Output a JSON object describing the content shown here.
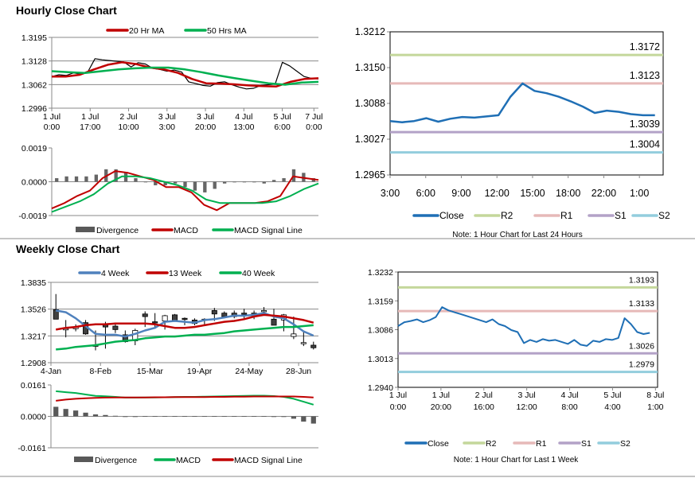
{
  "titles": {
    "hourly": "Hourly Close Chart",
    "weekly": "Weekly Close Chart"
  },
  "notes": {
    "hourly": "Note: 1 Hour Chart for Last 24 Hours",
    "weekly": "Note: 1 Hour Chart for  Last 1 Week"
  },
  "chart_data": [
    {
      "id": "hourly_price",
      "type": "line",
      "title": "Hourly Close Chart",
      "ylim": [
        1.2996,
        1.3195
      ],
      "yticks": [
        "1.3195",
        "1.3128",
        "1.3062",
        "1.2996"
      ],
      "grid": true,
      "xlim": [
        0,
        118
      ],
      "xticks": [
        {
          "x": 0,
          "l1": "1 Jul",
          "l2": "0:00"
        },
        {
          "x": 17,
          "l1": "1 Jul",
          "l2": "17:00"
        },
        {
          "x": 34,
          "l1": "2 Jul",
          "l2": "10:00"
        },
        {
          "x": 51,
          "l1": "3 Jul",
          "l2": "3:00"
        },
        {
          "x": 68,
          "l1": "3 Jul",
          "l2": "20:00"
        },
        {
          "x": 85,
          "l1": "4 Jul",
          "l2": "13:00"
        },
        {
          "x": 102,
          "l1": "5 Jul",
          "l2": "6:00"
        },
        {
          "x": 116,
          "l1": "7 Jul",
          "l2": "0:00"
        }
      ],
      "legend": [
        {
          "name": "20 Hr MA",
          "color": "#c00000"
        },
        {
          "name": "50 Hrs MA",
          "color": "#00b050"
        }
      ],
      "series": [
        {
          "name": "Close",
          "color": "#000000",
          "values": [
            1.3085,
            1.309,
            1.3088,
            1.3095,
            1.3092,
            1.3098,
            1.3135,
            1.3132,
            1.313,
            1.3128,
            1.3126,
            1.3112,
            1.3124,
            1.312,
            1.3108,
            1.3105,
            1.31,
            1.3103,
            1.3098,
            1.307,
            1.3065,
            1.306,
            1.3058,
            1.3068,
            1.307,
            1.3062,
            1.3055,
            1.305,
            1.3052,
            1.306,
            1.3062,
            1.3064,
            1.3125,
            1.3115,
            1.31,
            1.3085,
            1.308,
            1.3078
          ]
        },
        {
          "name": "20 Hr MA",
          "color": "#c00000",
          "values": [
            1.3085,
            1.3085,
            1.309,
            1.3105,
            1.3118,
            1.3125,
            1.312,
            1.311,
            1.3105,
            1.3095,
            1.3078,
            1.3066,
            1.3065,
            1.3063,
            1.306,
            1.3058,
            1.3057,
            1.307,
            1.3078,
            1.308
          ]
        },
        {
          "name": "50 Hrs MA",
          "color": "#00b050",
          "values": [
            1.31,
            1.3097,
            1.3095,
            1.31,
            1.3105,
            1.3108,
            1.311,
            1.311,
            1.3105,
            1.3097,
            1.3088,
            1.308,
            1.3073,
            1.3066,
            1.3062,
            1.3068,
            1.307
          ]
        }
      ]
    },
    {
      "id": "hourly_macd",
      "type": "line",
      "ylim": [
        -0.0019,
        0.0019
      ],
      "yticks": [
        "0.0019",
        "0.0000",
        "-0.0019"
      ],
      "grid": false,
      "legend": [
        {
          "name": "Divergence",
          "color": "#595959",
          "kind": "bar"
        },
        {
          "name": "MACD",
          "color": "#c00000"
        },
        {
          "name": "MACD Signal Line",
          "color": "#00b050"
        }
      ],
      "bars": {
        "name": "Divergence",
        "color": "#666666",
        "values": [
          0.0002,
          0.0003,
          0.0003,
          0.0003,
          0.0004,
          0.0007,
          0.0007,
          0.0005,
          0.0002,
          0.0,
          -0.0002,
          -0.0002,
          -0.0001,
          -0.0003,
          -0.0005,
          -0.0006,
          -0.0004,
          -0.0001,
          0.0,
          0.0,
          0.0,
          -0.0001,
          0.0001,
          0.0002,
          0.0007,
          0.0005,
          0.0002
        ]
      },
      "series": [
        {
          "name": "MACD",
          "color": "#c00000",
          "values": [
            -0.0015,
            -0.0012,
            -0.0008,
            -0.0005,
            0.0002,
            0.0006,
            0.0005,
            0.0003,
            0.0001,
            -0.0003,
            -0.0003,
            -0.0006,
            -0.0013,
            -0.0016,
            -0.0012,
            -0.0012,
            -0.0012,
            -0.0011,
            -0.0008,
            0.0003,
            0.0002,
            0.0001
          ]
        },
        {
          "name": "MACD Signal Line",
          "color": "#00b050",
          "values": [
            -0.0017,
            -0.0014,
            -0.0011,
            -0.0007,
            -0.0001,
            0.0003,
            0.0003,
            0.0002,
            0.0,
            -0.0002,
            -0.0005,
            -0.001,
            -0.0012,
            -0.0012,
            -0.0012,
            -0.0012,
            -0.0011,
            -0.0008,
            -0.0004,
            -0.0001
          ]
        }
      ]
    },
    {
      "id": "hourly_24h",
      "type": "line",
      "ylim": [
        1.2965,
        1.3212
      ],
      "yticks": [
        "1.3212",
        "1.3150",
        "1.3088",
        "1.3027",
        "1.2965"
      ],
      "grid": false,
      "xlim": [
        0,
        23
      ],
      "xticks": [
        {
          "x": 0,
          "l1": "3:00"
        },
        {
          "x": 3,
          "l1": "6:00"
        },
        {
          "x": 6,
          "l1": "9:00"
        },
        {
          "x": 9,
          "l1": "12:00"
        },
        {
          "x": 12,
          "l1": "15:00"
        },
        {
          "x": 15,
          "l1": "18:00"
        },
        {
          "x": 18,
          "l1": "22:00"
        },
        {
          "x": 21,
          "l1": "1:00"
        }
      ],
      "levels": [
        {
          "name": "R2",
          "value": 1.3172,
          "label": "1.3172",
          "color": "#c4d79b"
        },
        {
          "name": "R1",
          "value": 1.3123,
          "label": "1.3123",
          "color": "#e6b9b8"
        },
        {
          "name": "S1",
          "value": 1.3039,
          "label": "1.3039",
          "color": "#b3a2c7"
        },
        {
          "name": "S2",
          "value": 1.3004,
          "label": "1.3004",
          "color": "#93cddd"
        }
      ],
      "legend": [
        {
          "name": "Close",
          "color": "#1f6fb5"
        },
        {
          "name": "R2",
          "color": "#c4d79b"
        },
        {
          "name": "R1",
          "color": "#e6b9b8"
        },
        {
          "name": "S1",
          "color": "#b3a2c7"
        },
        {
          "name": "S2",
          "color": "#93cddd"
        }
      ],
      "series": [
        {
          "name": "Close",
          "color": "#1f6fb5",
          "values": [
            1.3058,
            1.3056,
            1.3058,
            1.3063,
            1.3057,
            1.3062,
            1.3065,
            1.3064,
            1.3066,
            1.3068,
            1.31,
            1.3123,
            1.311,
            1.3106,
            1.31,
            1.3092,
            1.3083,
            1.3072,
            1.3076,
            1.3074,
            1.307,
            1.3068,
            1.3068
          ]
        }
      ]
    },
    {
      "id": "weekly_price",
      "type": "candlestick",
      "title": "Weekly Close Chart",
      "ylim": [
        1.2908,
        1.3835
      ],
      "yticks": [
        "1.3835",
        "1.3526",
        "1.3217",
        "1.2908"
      ],
      "grid": true,
      "xticks": [
        {
          "x": 0,
          "l1": "4-Jan"
        },
        {
          "x": 5,
          "l1": "8-Feb"
        },
        {
          "x": 10,
          "l1": "15-Mar"
        },
        {
          "x": 15,
          "l1": "19-Apr"
        },
        {
          "x": 20,
          "l1": "24-May"
        },
        {
          "x": 25,
          "l1": "28-Jun"
        }
      ],
      "legend": [
        {
          "name": "4 Week",
          "color": "#4f81bd"
        },
        {
          "name": "13 Week",
          "color": "#c00000"
        },
        {
          "name": "40 Week",
          "color": "#00b050"
        }
      ],
      "candles": [
        [
          1.352,
          1.341,
          1.37,
          1.341
        ],
        [
          1.329,
          1.33,
          1.34,
          1.32
        ],
        [
          1.33,
          1.332,
          1.335,
          1.327
        ],
        [
          1.337,
          1.324,
          1.34,
          1.323
        ],
        [
          1.311,
          1.31,
          1.328,
          1.305
        ],
        [
          1.335,
          1.332,
          1.338,
          1.307
        ],
        [
          1.333,
          1.329,
          1.337,
          1.325
        ],
        [
          1.323,
          1.315,
          1.328,
          1.314
        ],
        [
          1.316,
          1.328,
          1.33,
          1.311
        ],
        [
          1.347,
          1.344,
          1.35,
          1.332
        ],
        [
          1.338,
          1.337,
          1.348,
          1.33
        ],
        [
          1.339,
          1.345,
          1.346,
          1.329
        ],
        [
          1.346,
          1.339,
          1.347,
          1.338
        ],
        [
          1.342,
          1.341,
          1.343,
          1.334
        ],
        [
          1.34,
          1.336,
          1.342,
          1.334
        ],
        [
          1.34,
          1.341,
          1.342,
          1.334
        ],
        [
          1.351,
          1.347,
          1.354,
          1.339
        ],
        [
          1.348,
          1.344,
          1.35,
          1.342
        ],
        [
          1.348,
          1.344,
          1.351,
          1.342
        ],
        [
          1.348,
          1.347,
          1.353,
          1.342
        ],
        [
          1.348,
          1.345,
          1.351,
          1.341
        ],
        [
          1.35,
          1.351,
          1.355,
          1.349
        ],
        [
          1.341,
          1.334,
          1.353,
          1.334
        ],
        [
          1.34,
          1.346,
          1.347,
          1.327
        ],
        [
          1.321,
          1.324,
          1.344,
          1.318
        ],
        [
          1.314,
          1.314,
          1.327,
          1.31
        ],
        [
          1.311,
          1.308,
          1.315,
          1.306
        ]
      ],
      "series": [
        {
          "name": "4 Week",
          "color": "#4f81bd",
          "values": [
            1.351,
            1.349,
            1.342,
            1.333,
            1.324,
            1.323,
            1.323,
            1.321,
            1.324,
            1.328,
            1.331,
            1.338,
            1.339,
            1.338,
            1.337,
            1.34,
            1.341,
            1.343,
            1.345,
            1.345,
            1.346,
            1.348,
            1.344,
            1.342,
            1.335,
            1.327,
            1.322
          ]
        },
        {
          "name": "13 Week",
          "color": "#c00000",
          "values": [
            1.329,
            1.331,
            1.332,
            1.334,
            1.335,
            1.335,
            1.336,
            1.336,
            1.336,
            1.336,
            1.335,
            1.333,
            1.331,
            1.331,
            1.332,
            1.334,
            1.336,
            1.338,
            1.339,
            1.341,
            1.344,
            1.346,
            1.345,
            1.344,
            1.342,
            1.34,
            1.337
          ]
        },
        {
          "name": "40 Week",
          "color": "#00b050",
          "values": [
            1.306,
            1.307,
            1.309,
            1.31,
            1.311,
            1.313,
            1.315,
            1.316,
            1.317,
            1.319,
            1.32,
            1.321,
            1.321,
            1.322,
            1.323,
            1.323,
            1.324,
            1.325,
            1.327,
            1.328,
            1.329,
            1.33,
            1.331,
            1.332,
            1.332,
            1.333,
            1.334
          ]
        }
      ]
    },
    {
      "id": "weekly_macd",
      "type": "line",
      "ylim": [
        -0.0161,
        0.0161
      ],
      "yticks": [
        "0.0161",
        "0.0000",
        "-0.0161"
      ],
      "grid": false,
      "legend": [
        {
          "name": "Divergence",
          "color": "#595959",
          "kind": "bar"
        },
        {
          "name": "MACD",
          "color": "#00b050"
        },
        {
          "name": "MACD Signal Line",
          "color": "#c00000"
        }
      ],
      "bars": {
        "name": "Divergence",
        "color": "#595959",
        "values": [
          0.0049,
          0.0038,
          0.003,
          0.0019,
          0.001,
          0.0007,
          0.0003,
          -0.0001,
          -0.0001,
          0.0001,
          0.0001,
          0.0001,
          0.0001,
          0.0001,
          0.0001,
          0.0001,
          0.0001,
          0.0001,
          0.0001,
          0.0001,
          0.0001,
          0.0002,
          -0.0001,
          -0.0001,
          -0.0012,
          -0.0027,
          -0.0037
        ]
      },
      "series": [
        {
          "name": "MACD",
          "color": "#00b050",
          "values": [
            0.0129,
            0.0124,
            0.012,
            0.0112,
            0.0105,
            0.0103,
            0.01,
            0.0096,
            0.0096,
            0.0097,
            0.0097,
            0.0098,
            0.0099,
            0.01,
            0.01,
            0.0101,
            0.0102,
            0.0103,
            0.0104,
            0.0105,
            0.0106,
            0.0106,
            0.0104,
            0.01,
            0.009,
            0.0075,
            0.006
          ]
        },
        {
          "name": "MACD Signal Line",
          "color": "#c00000",
          "values": [
            0.008,
            0.0086,
            0.009,
            0.0093,
            0.0095,
            0.0096,
            0.0097,
            0.0097,
            0.0097,
            0.0097,
            0.0098,
            0.0098,
            0.0099,
            0.0099,
            0.0099,
            0.0099,
            0.01,
            0.01,
            0.0101,
            0.0101,
            0.0102,
            0.0102,
            0.0102,
            0.0102,
            0.0102,
            0.01,
            0.0097
          ]
        }
      ]
    },
    {
      "id": "weekly_hourly",
      "type": "line",
      "ylim": [
        1.294,
        1.3232
      ],
      "yticks": [
        "1.3232",
        "1.3159",
        "1.3086",
        "1.3013",
        "1.2940"
      ],
      "grid": false,
      "xlim": [
        0,
        121
      ],
      "xticks": [
        {
          "x": 0,
          "l1": "1 Jul",
          "l2": "0:00"
        },
        {
          "x": 20,
          "l1": "1 Jul",
          "l2": "20:00"
        },
        {
          "x": 40,
          "l1": "2 Jul",
          "l2": "16:00"
        },
        {
          "x": 60,
          "l1": "3 Jul",
          "l2": "12:00"
        },
        {
          "x": 80,
          "l1": "4 Jul",
          "l2": "8:00"
        },
        {
          "x": 100,
          "l1": "5 Jul",
          "l2": "4:00"
        },
        {
          "x": 120,
          "l1": "8 Jul",
          "l2": "1:00"
        }
      ],
      "levels": [
        {
          "name": "R2",
          "value": 1.3193,
          "label": "1.3193",
          "color": "#c4d79b"
        },
        {
          "name": "R1",
          "value": 1.3133,
          "label": "1.3133",
          "color": "#e6b9b8"
        },
        {
          "name": "S1",
          "value": 1.3026,
          "label": "1.3026",
          "color": "#b3a2c7"
        },
        {
          "name": "S2",
          "value": 1.2979,
          "label": "1.2979",
          "color": "#93cddd"
        }
      ],
      "legend": [
        {
          "name": "Close",
          "color": "#1f6fb5"
        },
        {
          "name": "R2",
          "color": "#c4d79b"
        },
        {
          "name": "R1",
          "color": "#e6b9b8"
        },
        {
          "name": "S1",
          "color": "#b3a2c7"
        },
        {
          "name": "S2",
          "color": "#93cddd"
        }
      ],
      "series": [
        {
          "name": "Close",
          "color": "#1f6fb5",
          "values": [
            1.3095,
            1.3105,
            1.3108,
            1.3112,
            1.3105,
            1.311,
            1.3118,
            1.3143,
            1.3135,
            1.313,
            1.3125,
            1.312,
            1.3115,
            1.311,
            1.3105,
            1.3112,
            1.31,
            1.3095,
            1.3085,
            1.308,
            1.3052,
            1.306,
            1.3055,
            1.3062,
            1.3058,
            1.306,
            1.3055,
            1.305,
            1.306,
            1.3048,
            1.3045,
            1.3058,
            1.3055,
            1.3062,
            1.306,
            1.3065,
            1.3115,
            1.31,
            1.308,
            1.3075,
            1.3078
          ]
        }
      ]
    }
  ]
}
